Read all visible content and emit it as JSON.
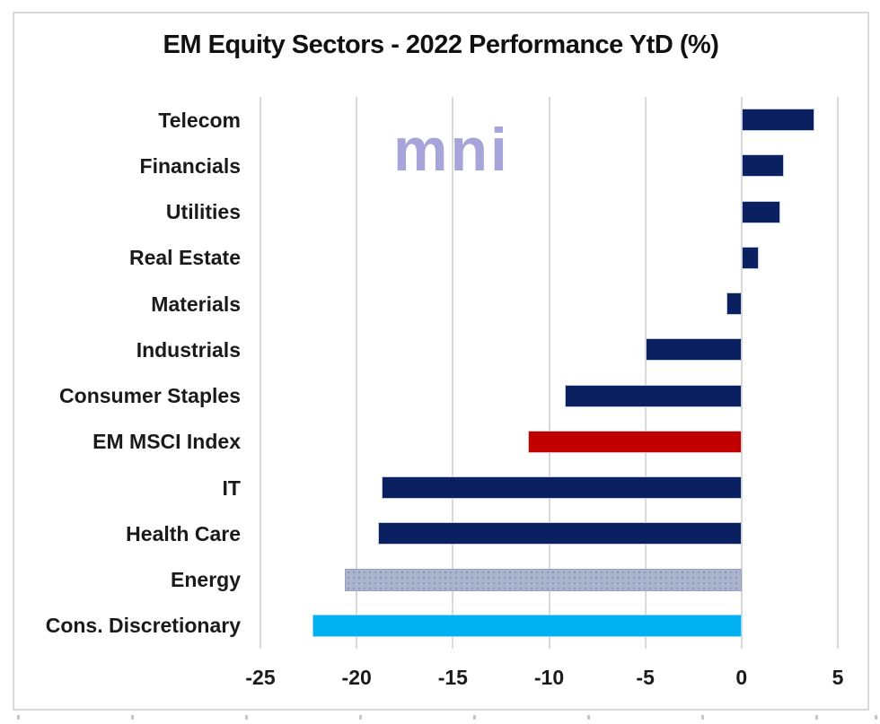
{
  "title": "EM Equity Sectors - 2022 Performance YtD (%)",
  "watermark": {
    "text": "mni",
    "color": "#a7a4d9"
  },
  "chart_data": {
    "type": "bar",
    "orientation": "horizontal",
    "title": "EM Equity Sectors - 2022 Performance YtD (%)",
    "categories": [
      "Telecom",
      "Financials",
      "Utilities",
      "Real Estate",
      "Materials",
      "Industrials",
      "Consumer Staples",
      "EM MSCI Index",
      "IT",
      "Health Care",
      "Energy",
      "Cons. Discretionary"
    ],
    "values": [
      3.8,
      2.2,
      2.0,
      0.9,
      -0.8,
      -5.0,
      -9.2,
      -11.1,
      -18.7,
      -18.9,
      -20.6,
      -22.3
    ],
    "bar_styles": [
      "navy",
      "navy",
      "navy",
      "navy",
      "navy",
      "navy",
      "navy",
      "red",
      "navy",
      "navy",
      "pattern",
      "cyan"
    ],
    "xlabel": "",
    "ylabel": "",
    "xlim": [
      -25,
      5
    ],
    "x_ticks": [
      -25,
      -20,
      -15,
      -10,
      -5,
      0,
      5
    ],
    "grid": true,
    "legend": false
  },
  "colors": {
    "bar_default": "#0a2060",
    "bar_index_highlight": "#c00000",
    "bar_energy": "#abb4cd",
    "bar_cons_discretionary": "#00b0f0",
    "gridline": "#d9d9d9",
    "frame_border": "#d9d9d9",
    "text": "#1a1a1a",
    "watermark": "#a7a4d9"
  }
}
